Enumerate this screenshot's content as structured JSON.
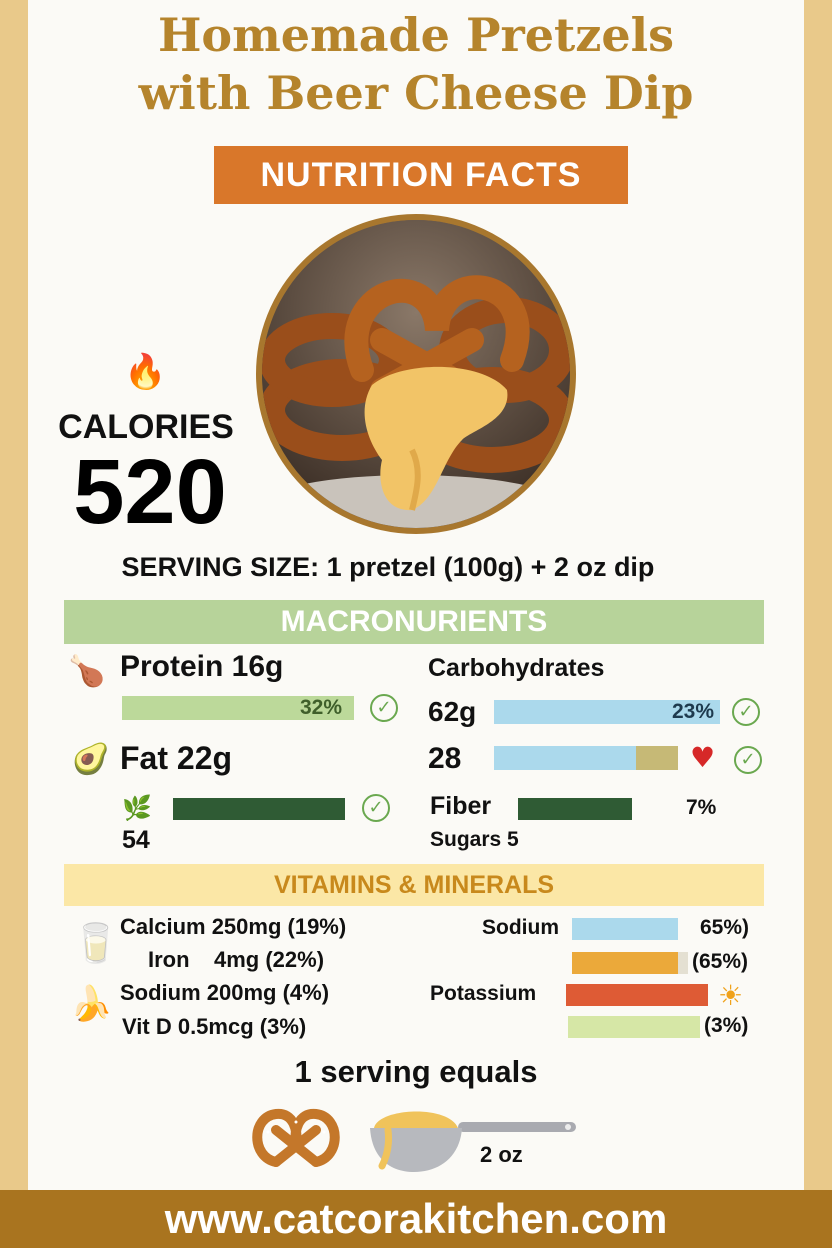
{
  "header": {
    "title_line1": "Homemade Pretzels",
    "title_line2": "with Beer Cheese Dip",
    "banner": "NUTRITION FACTS"
  },
  "calories": {
    "icon": "fire-icon",
    "label": "CALORIES",
    "value": "520"
  },
  "serving_size": "SERVING SIZE: 1 pretzel (100g) + 2 oz dip",
  "macronutrients": {
    "heading": "MACRONURIENTS",
    "protein": {
      "label": "Protein 16g",
      "percent_text": "32%",
      "fill": 0.32,
      "icon": "chicken-leg-icon"
    },
    "fat": {
      "label": "Fat 22g",
      "icon": "avocado-icon"
    },
    "fat_sub": {
      "value": "54",
      "icon": "leaf-icon"
    },
    "carbohydrates": {
      "label": "Carbohydrates",
      "value": "62g",
      "percent_text": "23%"
    },
    "carb_row2": {
      "value": "28",
      "icon": "heart-icon"
    },
    "fiber": {
      "label": "Fiber",
      "percent_text": "7%"
    },
    "sugars": {
      "label": "Sugars 5"
    }
  },
  "vitamins": {
    "heading": "VITAMINS & MINERALS",
    "left": [
      {
        "text": "Calcium 250mg (19%)",
        "icon": "milk-carton-icon"
      },
      {
        "text": "Iron    4mg (22%)"
      },
      {
        "text": "Sodium 200mg (4%)",
        "icon": "banana-icon"
      },
      {
        "text": "Vit D 0.5mcg (3%)"
      }
    ],
    "right": [
      {
        "label": "Sodium",
        "suffix": "65%)"
      },
      {
        "label": "",
        "suffix": "(65%)"
      },
      {
        "label": "Potassium",
        "suffix": "",
        "icon": "sun-icon"
      },
      {
        "label": "",
        "suffix": "(3%)"
      }
    ]
  },
  "serving_equals": {
    "heading": "1 serving equals",
    "dip_amount": "2 oz"
  },
  "footer": {
    "url": "www.catcorakitchen.com"
  },
  "colors": {
    "title": "#b5842c",
    "banner": "#d9772a",
    "macro_band": "#b7d39a",
    "vitamin_band": "#fbe7a6",
    "footer": "#a9741f"
  }
}
